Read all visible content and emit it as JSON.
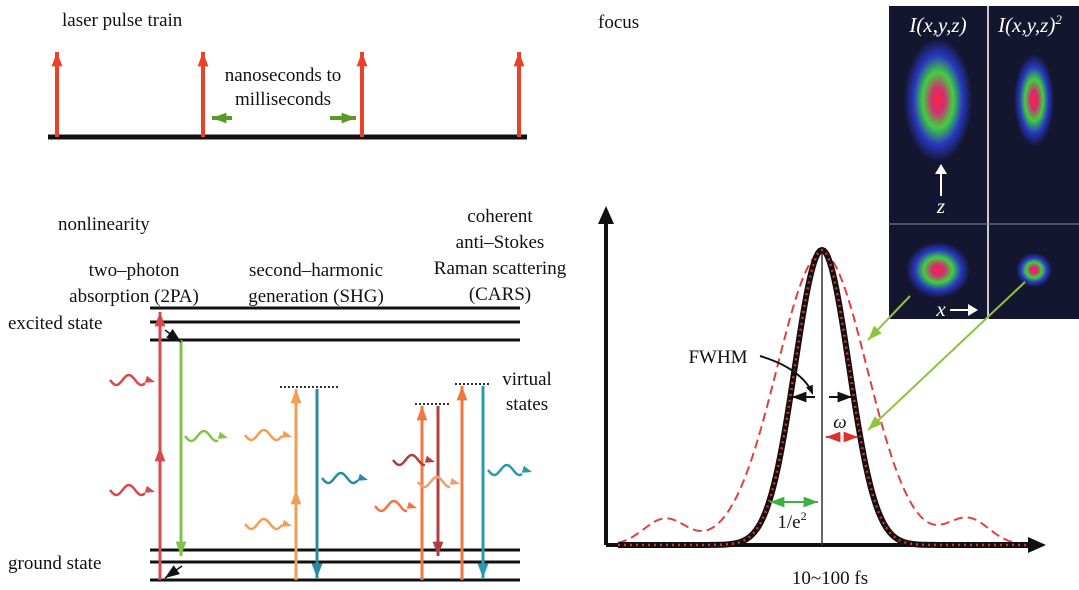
{
  "pulse_train": {
    "title": "laser pulse train",
    "interval": [
      "nanoseconds to",
      "milliseconds"
    ]
  },
  "focus": {
    "title": "focus",
    "panels": [
      {
        "label": "I(x,y,z)"
      },
      {
        "label": "I(x,y,z)",
        "sup": "2"
      }
    ],
    "axis_labels": {
      "z": "z",
      "x": "x"
    },
    "plot": {
      "fwhm": "FWHM",
      "omega": "ω",
      "width_label": {
        "text": "1/e",
        "sup": "2"
      },
      "x_label": "10~100 fs"
    }
  },
  "nonlinearity": {
    "title": "nonlinearity",
    "processes": [
      {
        "lines": [
          "two–photon",
          "absorption (2PA)"
        ]
      },
      {
        "lines": [
          "second–harmonic",
          "generation (SHG)"
        ]
      },
      {
        "lines": [
          "coherent",
          "anti–Stokes",
          "Raman scattering",
          "(CARS)"
        ]
      }
    ],
    "excited_state": "excited state",
    "ground_state": "ground state",
    "virtual_states": [
      "virtual",
      "states"
    ]
  }
}
